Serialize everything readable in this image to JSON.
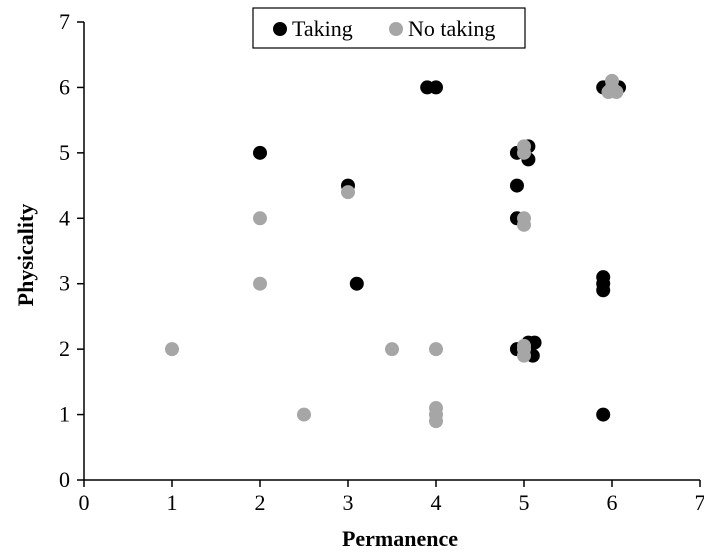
{
  "chart_data": {
    "type": "scatter",
    "title": "",
    "xlabel": "Permanence",
    "ylabel": "Physicality",
    "xlim": [
      0,
      7
    ],
    "ylim": [
      0,
      7
    ],
    "xticks": [
      "0",
      "1",
      "2",
      "3",
      "4",
      "5",
      "6",
      "7"
    ],
    "yticks": [
      "0",
      "1",
      "2",
      "3",
      "4",
      "5",
      "6",
      "7"
    ],
    "grid": false,
    "legend_position": "top-center",
    "series": [
      {
        "name": "Taking",
        "color": "#000000",
        "points": [
          [
            2,
            5
          ],
          [
            3,
            4.5
          ],
          [
            3.1,
            3
          ],
          [
            3.9,
            6
          ],
          [
            4,
            6
          ],
          [
            4.92,
            5
          ],
          [
            5.05,
            5.1
          ],
          [
            5.05,
            4.9
          ],
          [
            4.92,
            4.5
          ],
          [
            4.92,
            4
          ],
          [
            4.92,
            2
          ],
          [
            5.05,
            2.1
          ],
          [
            5.12,
            2.1
          ],
          [
            5.1,
            1.9
          ],
          [
            5.9,
            6
          ],
          [
            6.08,
            6
          ],
          [
            5.9,
            3.1
          ],
          [
            5.9,
            3
          ],
          [
            5.9,
            2.9
          ],
          [
            5.9,
            1
          ]
        ]
      },
      {
        "name": "No taking",
        "color": "#a6a6a6",
        "points": [
          [
            1,
            2
          ],
          [
            2,
            4
          ],
          [
            2,
            3
          ],
          [
            2.5,
            1
          ],
          [
            3,
            4.4
          ],
          [
            3.5,
            2
          ],
          [
            4,
            2
          ],
          [
            4,
            1.1
          ],
          [
            4,
            1
          ],
          [
            4,
            0.9
          ],
          [
            5,
            5.1
          ],
          [
            5,
            5
          ],
          [
            5,
            4
          ],
          [
            5,
            3.9
          ],
          [
            5,
            2
          ],
          [
            5,
            1.9
          ],
          [
            5,
            2.05
          ],
          [
            6,
            6.1
          ],
          [
            5.96,
            5.93
          ],
          [
            6.05,
            5.93
          ],
          [
            6,
            6
          ]
        ]
      }
    ]
  }
}
